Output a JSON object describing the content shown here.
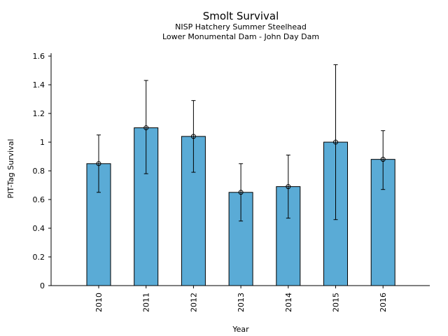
{
  "chart_data": {
    "type": "bar",
    "title": "Smolt Survival",
    "subtitle_lines": [
      "NISP Hatchery Summer Steelhead",
      "Lower Monumental Dam - John Day Dam"
    ],
    "xlabel": "Year",
    "ylabel": "PIT-Tag Survival",
    "categories": [
      "2010",
      "2011",
      "2012",
      "2013",
      "2014",
      "2015",
      "2016"
    ],
    "values": [
      0.85,
      1.1,
      1.04,
      0.65,
      0.69,
      1.0,
      0.88
    ],
    "error_low": [
      0.65,
      0.78,
      0.79,
      0.45,
      0.47,
      0.46,
      0.67
    ],
    "error_high": [
      1.05,
      1.43,
      1.29,
      0.85,
      0.91,
      1.54,
      1.08
    ],
    "ylim": [
      0,
      1.62
    ],
    "yticks": [
      0,
      0.2,
      0.4,
      0.6,
      0.8,
      1,
      1.2,
      1.4,
      1.6
    ],
    "ytick_labels": [
      "0",
      "0.2",
      "0.4",
      "0.6",
      "0.8",
      "1",
      "1.2",
      "1.4",
      "1.6"
    ],
    "bar_color": "#5aabd6",
    "edge_color": "#000000",
    "grid": false,
    "legend": "none"
  }
}
